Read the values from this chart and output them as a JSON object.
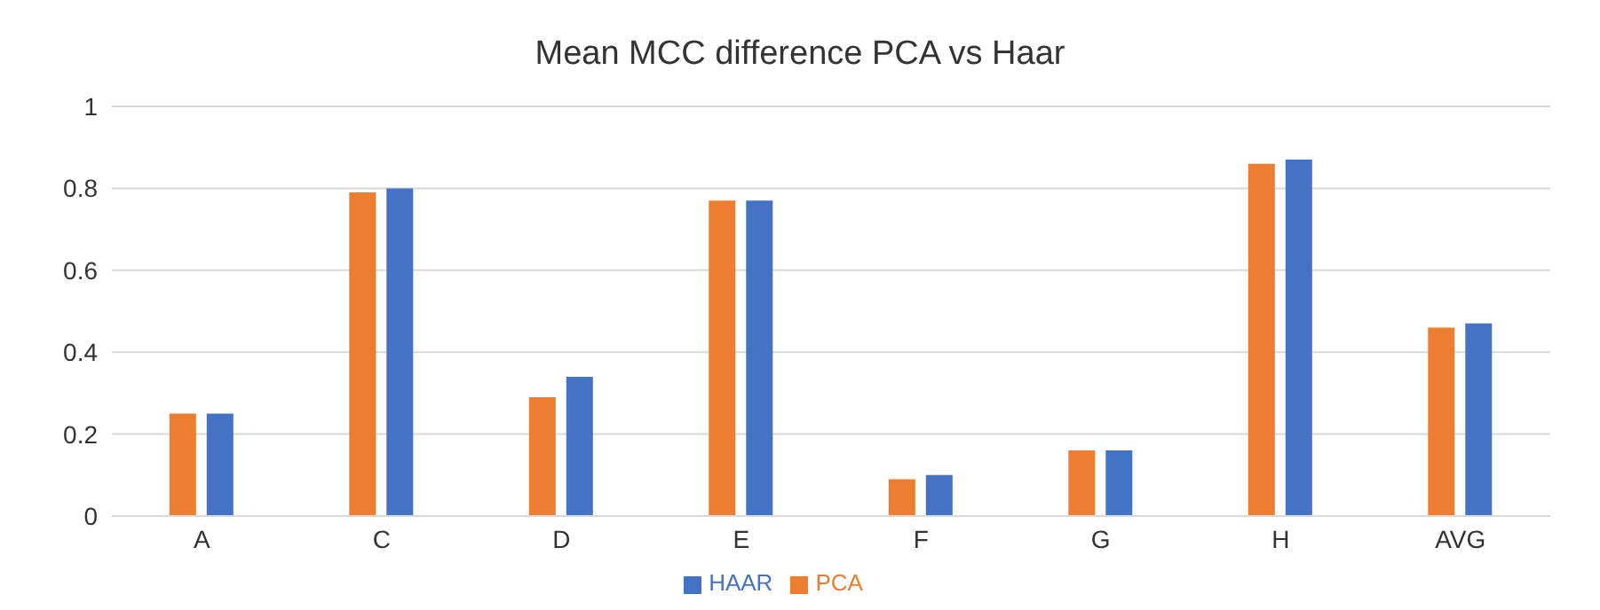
{
  "chart_data": {
    "type": "bar",
    "title": "Mean MCC difference PCA vs Haar",
    "categories": [
      "A",
      "C",
      "D",
      "E",
      "F",
      "G",
      "H",
      "AVG"
    ],
    "series": [
      {
        "name": "PCA",
        "color": "#ed7d31",
        "values": [
          0.25,
          0.79,
          0.29,
          0.77,
          0.09,
          0.16,
          0.86,
          0.46
        ]
      },
      {
        "name": "HAAR",
        "color": "#4472c4",
        "values": [
          0.25,
          0.8,
          0.34,
          0.77,
          0.1,
          0.16,
          0.87,
          0.47
        ]
      }
    ],
    "ylim": [
      0,
      1
    ],
    "yticks": [
      0,
      0.2,
      0.4,
      0.6,
      0.8,
      1
    ],
    "grid": "y",
    "legend": "bottom"
  }
}
